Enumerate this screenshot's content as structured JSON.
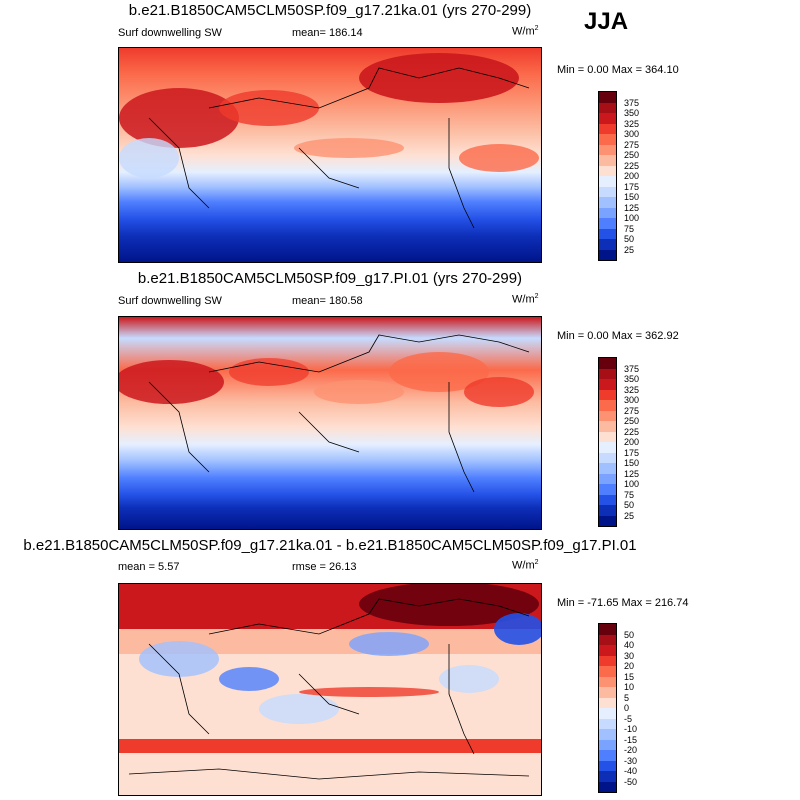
{
  "season": "JJA",
  "panels": [
    {
      "title": "b.e21.B1850CAM5CLM50SP.f09_g17.21ka.01 (yrs 270-299)",
      "left_label": "Surf downwelling SW",
      "center_label": "mean= 186.14",
      "units": "W/m",
      "units_sup": "2",
      "minmax": "Min =   0.00 Max = 364.10",
      "colorbar_ticks": [
        "375",
        "350",
        "325",
        "300",
        "275",
        "250",
        "225",
        "200",
        "175",
        "150",
        "125",
        "100",
        "75",
        "50",
        "25"
      ]
    },
    {
      "title": "b.e21.B1850CAM5CLM50SP.f09_g17.PI.01 (yrs 270-299)",
      "left_label": "Surf downwelling SW",
      "center_label": "mean= 180.58",
      "units": "W/m",
      "units_sup": "2",
      "minmax": "Min =   0.00 Max = 362.92",
      "colorbar_ticks": [
        "375",
        "350",
        "325",
        "300",
        "275",
        "250",
        "225",
        "200",
        "175",
        "150",
        "125",
        "100",
        "75",
        "50",
        "25"
      ]
    },
    {
      "title": "b.e21.B1850CAM5CLM50SP.f09_g17.21ka.01 - b.e21.B1850CAM5CLM50SP.f09_g17.PI.01",
      "left_label": "mean =   5.57",
      "center_label": "rmse =  26.13",
      "units": "W/m",
      "units_sup": "2",
      "minmax": "Min = -71.65 Max = 216.74",
      "colorbar_ticks": [
        "50",
        "40",
        "30",
        "20",
        "15",
        "10",
        "5",
        "0",
        "-5",
        "-10",
        "-15",
        "-20",
        "-30",
        "-40",
        "-50"
      ]
    }
  ],
  "colors": {
    "abs_scale": [
      "#67000d",
      "#a50f15",
      "#cb181d",
      "#ef3b2c",
      "#fb6a4a",
      "#fc9272",
      "#fcbba1",
      "#fee0d2",
      "#e5efff",
      "#c6dbff",
      "#a0c0ff",
      "#7aa3ff",
      "#4f7fff",
      "#2451e6",
      "#0d2fb8",
      "#00148a"
    ],
    "diff_scale": [
      "#67000d",
      "#a50f15",
      "#cb181d",
      "#ef3b2c",
      "#fb6a4a",
      "#fc9272",
      "#fcbba1",
      "#fee0d2",
      "#e5efff",
      "#c6dbff",
      "#a0c0ff",
      "#7aa3ff",
      "#4f7fff",
      "#2451e6",
      "#0d2fb8",
      "#00148a"
    ],
    "coastline": "#000000"
  }
}
